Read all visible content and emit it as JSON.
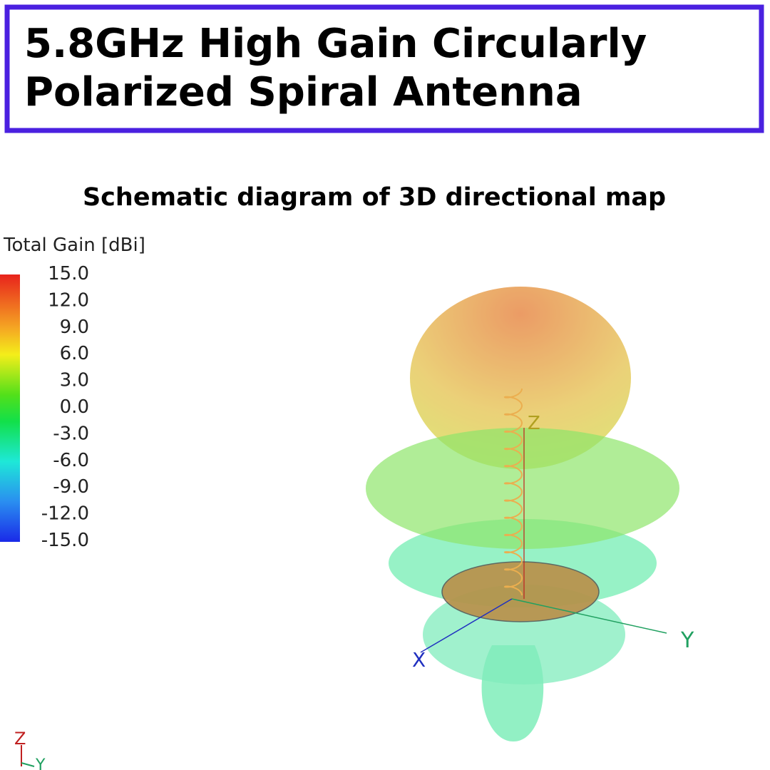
{
  "header": {
    "title_lines": [
      "5.8GHz High Gain Circularly",
      "Polarized Spiral Antenna"
    ]
  },
  "subtitle": "Schematic diagram of 3D directional map",
  "legend": {
    "title": "Total Gain [dBi]",
    "ticks": [
      "15.0",
      "12.0",
      "9.0",
      "6.0",
      "3.0",
      "0.0",
      "-3.0",
      "-6.0",
      "-9.0",
      "-12.0",
      "-15.0"
    ]
  },
  "axes": {
    "z": "Z",
    "y": "Y",
    "x": "X"
  },
  "corner_axes": {
    "z": "Z",
    "y": "Y"
  }
}
